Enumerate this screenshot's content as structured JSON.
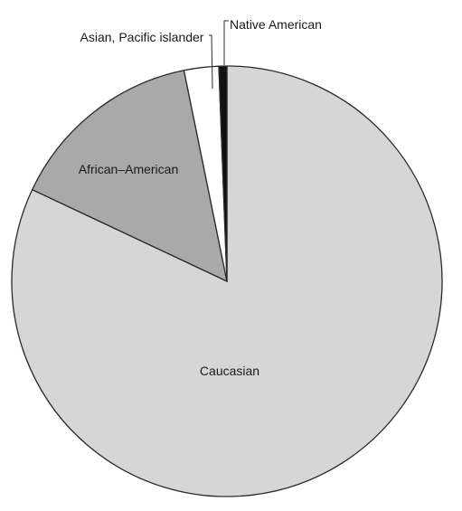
{
  "chart_data": {
    "type": "pie",
    "title": "",
    "slices": [
      {
        "label": "Caucasian",
        "value": 82.0,
        "color": "#d6d6d6"
      },
      {
        "label": "African–American",
        "value": 14.8,
        "color": "#a9a9a9"
      },
      {
        "label": "Asian, Pacific islander",
        "value": 2.6,
        "color": "#ffffff"
      },
      {
        "label": "Native American",
        "value": 0.6,
        "color": "#111111"
      }
    ],
    "legend": "none",
    "start": "top",
    "direction": "clockwise"
  }
}
